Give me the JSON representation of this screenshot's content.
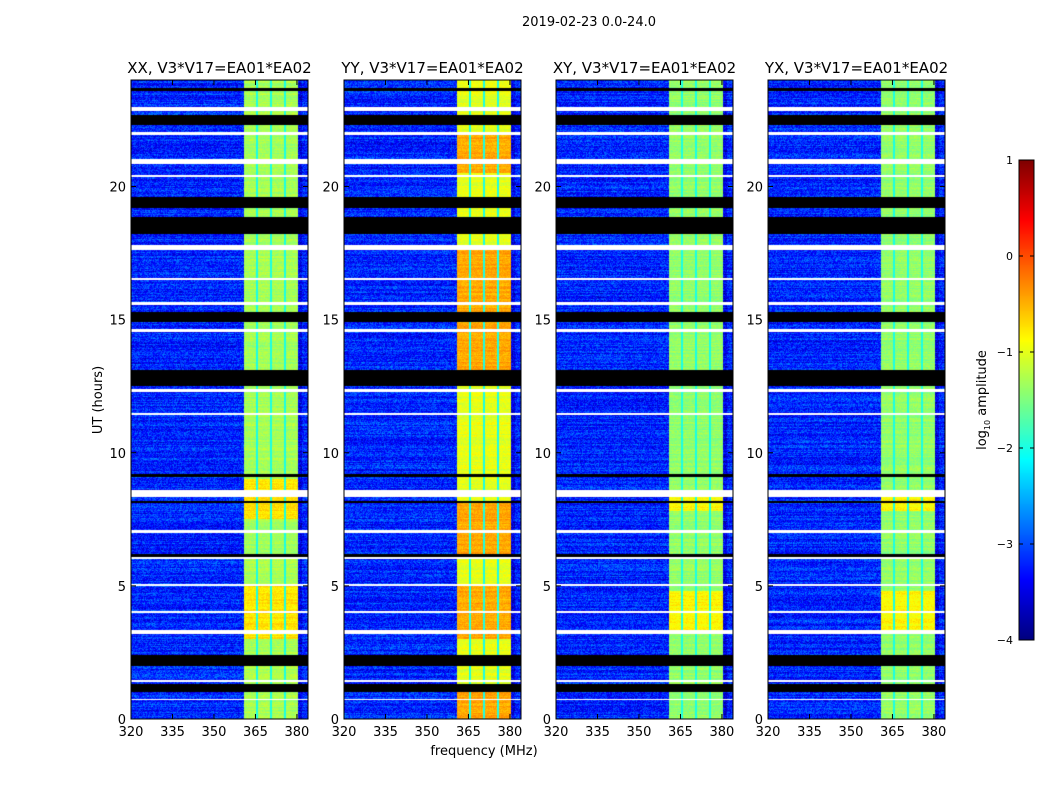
{
  "chart_data": {
    "type": "heatmap",
    "suptitle": "2019-02-23 0.0-24.0",
    "xlabel": "frequency (MHz)",
    "ylabel": "UT (hours)",
    "xlim": [
      320,
      384
    ],
    "ylim": [
      0,
      24
    ],
    "xticks": [
      320,
      335,
      350,
      365,
      380
    ],
    "yticks": [
      0,
      5,
      10,
      15,
      20
    ],
    "panels": [
      {
        "title": "XX, V3*V17=EA01*EA02",
        "band_level": -1.3,
        "hot_intervals": [
          [
            3.0,
            5.0
          ],
          [
            7.5,
            9.0
          ]
        ]
      },
      {
        "title": "YY, V3*V17=EA01*EA02",
        "band_level": -1.0,
        "hot_intervals": [
          [
            0.0,
            1.3
          ],
          [
            3.0,
            5.0
          ],
          [
            6.2,
            8.2
          ],
          [
            13.0,
            17.6
          ],
          [
            20.5,
            22.0
          ]
        ]
      },
      {
        "title": "XY, V3*V17=EA01*EA02",
        "band_level": -1.4,
        "hot_intervals": [
          [
            3.2,
            4.8
          ],
          [
            7.8,
            8.6
          ]
        ]
      },
      {
        "title": "YX, V3*V17=EA01*EA02",
        "band_level": -1.4,
        "hot_intervals": [
          [
            3.2,
            4.8
          ],
          [
            7.8,
            8.6
          ]
        ]
      }
    ],
    "background_level": -3.2,
    "band_MHz": [
      360.7,
      380.3
    ],
    "band_gaps_MHz": [
      365.6,
      370.6,
      375.6
    ],
    "flagged_white_UT": [
      [
        22.85,
        23.0
      ],
      [
        21.95,
        22.05
      ],
      [
        20.85,
        21.05
      ],
      [
        20.35,
        20.45
      ],
      [
        17.6,
        17.8
      ],
      [
        16.5,
        16.56
      ],
      [
        15.55,
        15.65
      ],
      [
        14.55,
        14.65
      ],
      [
        12.3,
        12.4
      ],
      [
        11.4,
        11.48
      ],
      [
        8.35,
        8.6
      ],
      [
        7.0,
        7.08
      ],
      [
        6.0,
        6.08
      ],
      [
        5.0,
        5.08
      ],
      [
        4.0,
        4.05
      ],
      [
        3.2,
        3.35
      ],
      [
        1.4,
        1.45
      ],
      [
        0.7,
        0.75
      ]
    ],
    "flagged_black_UT": [
      [
        23.6,
        23.7
      ],
      [
        22.3,
        22.7
      ],
      [
        19.2,
        19.6
      ],
      [
        18.2,
        18.85
      ],
      [
        14.9,
        15.3
      ],
      [
        12.5,
        13.1
      ],
      [
        9.1,
        9.2
      ],
      [
        8.1,
        8.2
      ],
      [
        6.1,
        6.2
      ],
      [
        2.0,
        2.4
      ],
      [
        1.0,
        1.3
      ]
    ],
    "colorbar": {
      "label": "log10 amplitude",
      "label_main": "log",
      "label_sub": "10",
      "label_rest": " amplitude",
      "range": [
        -4,
        1
      ],
      "ticks": [
        "1",
        "0",
        "−1",
        "−2",
        "−3",
        "−4"
      ],
      "tick_values": [
        1,
        0,
        -1,
        -2,
        -3,
        -4
      ],
      "colormap": "jet"
    }
  }
}
